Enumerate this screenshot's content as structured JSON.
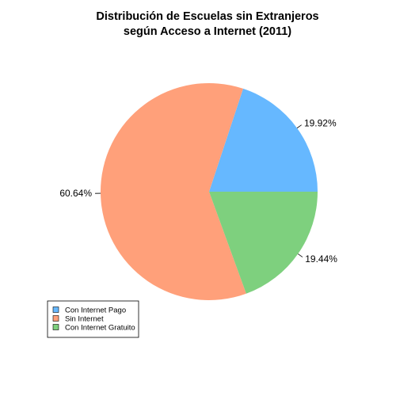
{
  "chart_data": {
    "type": "pie",
    "title": [
      "Distribución de Escuelas sin Extranjeros",
      "según Acceso a Internet (2011)"
    ],
    "categories": [
      "Con Internet Pago",
      "Sin Internet",
      "Con Internet Gratuito"
    ],
    "values": [
      19.92,
      60.64,
      19.44
    ],
    "labels": [
      "19.92%",
      "60.64%",
      "19.44%"
    ],
    "colors": [
      "#66B8FF",
      "#FFA07A",
      "#7ED07E"
    ],
    "start_angle_deg": 0,
    "direction": "counterclockwise",
    "legend_position": "bottom-left"
  }
}
